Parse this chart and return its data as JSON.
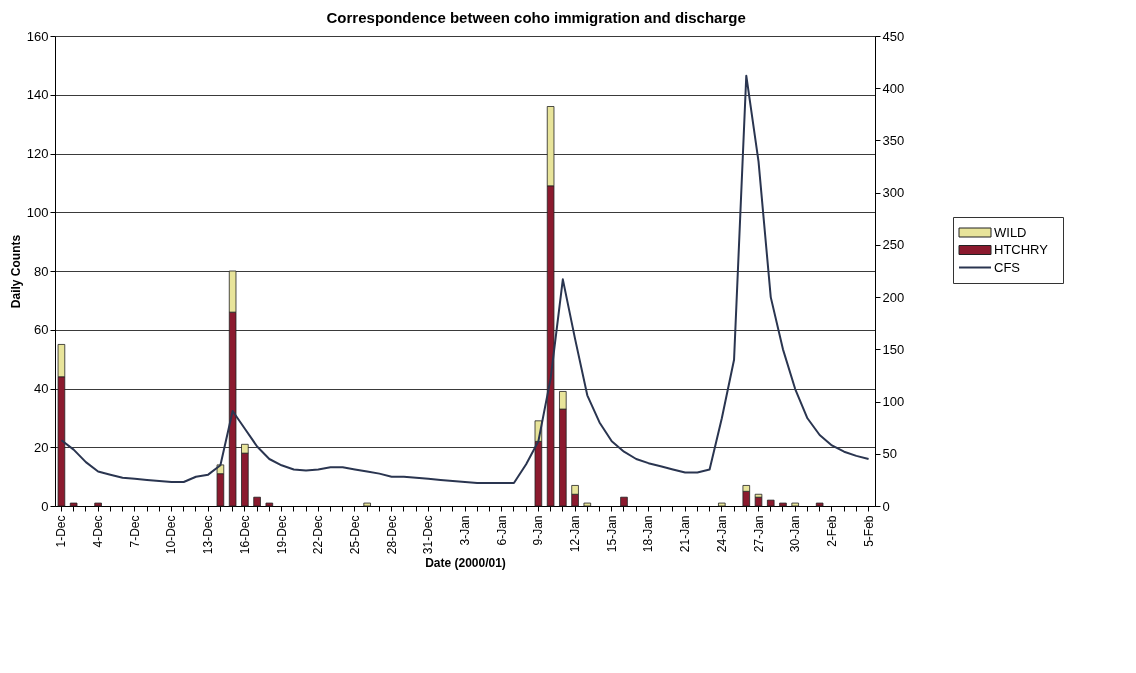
{
  "chart_data": {
    "type": "bar",
    "stacked": true,
    "title": "Correspondence between coho immigration and discharge",
    "xlabel": "Date (2000/01)",
    "ylabel": "Daily Counts",
    "categories": [
      "1-Dec",
      null,
      null,
      "4-Dec",
      null,
      null,
      "7-Dec",
      null,
      null,
      "10-Dec",
      null,
      null,
      "13-Dec",
      null,
      null,
      "16-Dec",
      null,
      null,
      "19-Dec",
      null,
      null,
      "22-Dec",
      null,
      null,
      "25-Dec",
      null,
      null,
      "28-Dec",
      null,
      null,
      "31-Dec",
      null,
      null,
      "3-Jan",
      null,
      null,
      "6-Jan",
      null,
      null,
      "9-Jan",
      null,
      null,
      "12-Jan",
      null,
      null,
      "15-Jan",
      null,
      null,
      "18-Jan",
      null,
      null,
      "21-Jan",
      null,
      null,
      "24-Jan",
      null,
      null,
      "27-Jan",
      null,
      null,
      "30-Jan",
      null,
      null,
      "2-Feb",
      null,
      null,
      "5-Feb"
    ],
    "series": [
      {
        "name": "HTCHRY",
        "color": "#8b1a2e",
        "values": [
          44,
          1,
          null,
          1,
          null,
          null,
          null,
          null,
          null,
          null,
          null,
          null,
          null,
          11,
          66,
          18,
          3,
          1,
          null,
          null,
          null,
          null,
          null,
          null,
          null,
          null,
          null,
          null,
          null,
          null,
          null,
          null,
          null,
          null,
          null,
          null,
          null,
          null,
          null,
          22,
          109,
          33,
          4,
          null,
          null,
          null,
          3,
          null,
          null,
          null,
          null,
          null,
          null,
          null,
          null,
          null,
          5,
          3,
          2,
          1,
          null,
          null,
          1,
          null,
          null,
          null,
          null
        ]
      },
      {
        "name": "WILD",
        "color": "#e8e49a",
        "values": [
          11,
          null,
          null,
          null,
          null,
          null,
          null,
          null,
          null,
          null,
          null,
          null,
          null,
          3,
          14,
          3,
          null,
          null,
          null,
          null,
          null,
          null,
          null,
          null,
          null,
          1,
          null,
          null,
          null,
          null,
          null,
          null,
          null,
          null,
          null,
          null,
          null,
          null,
          null,
          7,
          27,
          6,
          3,
          1,
          null,
          null,
          null,
          null,
          null,
          null,
          null,
          null,
          null,
          null,
          1,
          null,
          2,
          1,
          null,
          null,
          1,
          null,
          null,
          null,
          null,
          null,
          null
        ]
      },
      {
        "name": "CFS",
        "type": "line",
        "axis": "y2",
        "color": "#2a3550",
        "values": [
          63,
          54,
          42,
          33,
          30,
          27,
          26,
          25,
          24,
          23,
          23,
          28,
          30,
          39,
          91,
          74,
          57,
          45,
          39,
          35,
          34,
          35,
          37,
          37,
          35,
          33,
          31,
          28,
          28,
          27,
          26,
          25,
          24,
          23,
          22,
          22,
          22,
          22,
          40,
          62,
          122,
          217,
          160,
          106,
          80,
          62,
          52,
          45,
          41,
          38,
          35,
          32,
          32,
          35,
          84,
          140,
          412,
          330,
          200,
          150,
          112,
          84,
          68,
          58,
          52,
          48,
          45
        ]
      }
    ],
    "ylim": [
      0,
      160
    ],
    "yticks": [
      0,
      20,
      40,
      60,
      80,
      100,
      120,
      140,
      160
    ],
    "y2lim": [
      0,
      450
    ],
    "y2ticks": [
      0,
      50,
      100,
      150,
      200,
      250,
      300,
      350,
      400,
      450
    ],
    "grid": "y",
    "legend": "right"
  }
}
